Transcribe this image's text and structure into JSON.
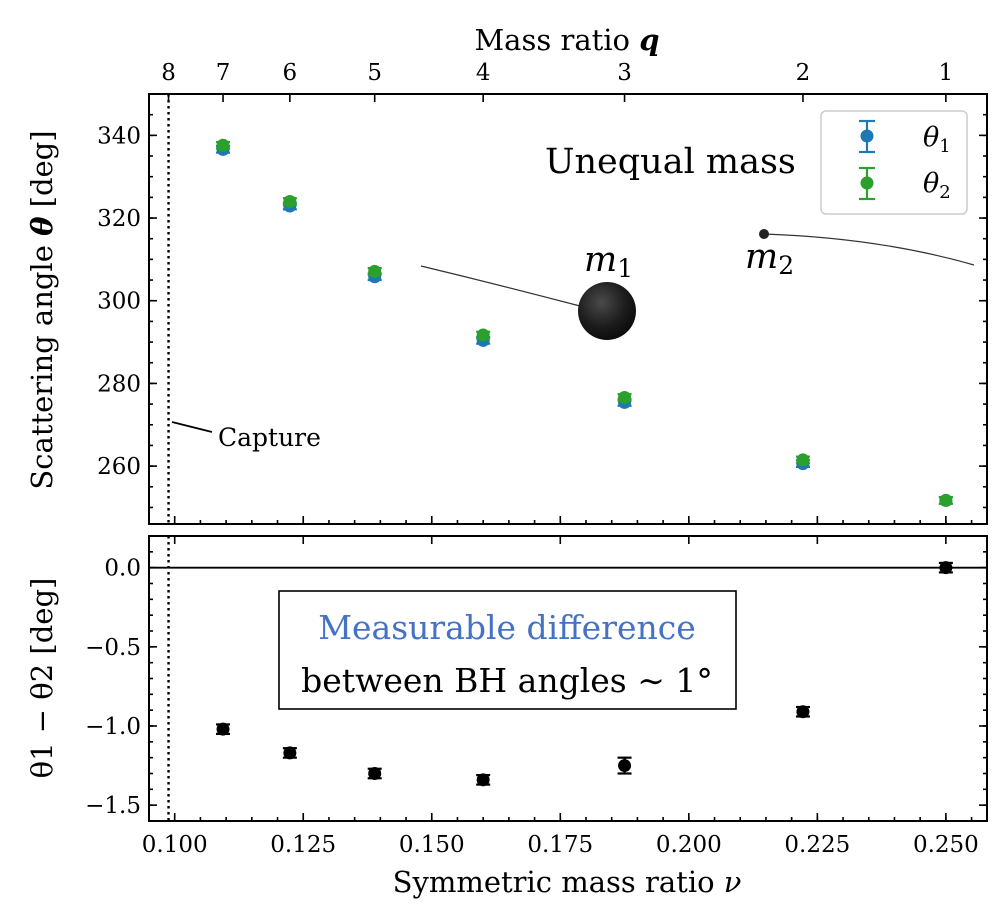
{
  "chart_data": [
    {
      "type": "scatter",
      "panel": "top",
      "title": "",
      "top_axis": {
        "label": "Mass ratio",
        "label_symbol": "q",
        "ticks": [
          {
            "label": "8",
            "nu": 0.0988
          },
          {
            "label": "7",
            "nu": 0.1094
          },
          {
            "label": "6",
            "nu": 0.1224
          },
          {
            "label": "5",
            "nu": 0.1389
          },
          {
            "label": "4",
            "nu": 0.16
          },
          {
            "label": "3",
            "nu": 0.1875
          },
          {
            "label": "2",
            "nu": 0.2222
          },
          {
            "label": "1",
            "nu": 0.25
          }
        ]
      },
      "xlabel": "Symmetric mass ratio",
      "xlabel_symbol": "ν",
      "ylabel": "Scattering angle",
      "ylabel_symbol": "θ",
      "ylabel_unit": "[deg]",
      "xlim": [
        0.095,
        0.258
      ],
      "ylim": [
        246,
        350
      ],
      "yticks": [
        260,
        280,
        300,
        320,
        340
      ],
      "x": [
        0.1094,
        0.1224,
        0.1389,
        0.16,
        0.1875,
        0.2222,
        0.25
      ],
      "series": [
        {
          "name": "θ1",
          "base": "θ",
          "sub": "1",
          "color": "#1f77b4",
          "values": [
            336.6,
            322.9,
            305.8,
            290.4,
            275.4,
            260.6,
            251.7
          ],
          "error": 0.6
        },
        {
          "name": "θ2",
          "base": "θ",
          "sub": "2",
          "color": "#2ca02c",
          "values": [
            337.6,
            324.0,
            307.1,
            291.7,
            276.6,
            261.5,
            251.7
          ],
          "error": 0.6
        }
      ],
      "capture_line": {
        "x": 0.0988,
        "label": "Capture"
      },
      "annotation_title": "Unequal mass",
      "bodies": [
        {
          "label_base": "m",
          "label_sub": "1"
        },
        {
          "label_base": "m",
          "label_sub": "2"
        }
      ],
      "legend_position": "top-right",
      "grid": false
    },
    {
      "type": "scatter",
      "panel": "bottom",
      "xlabel": "Symmetric mass ratio",
      "xlabel_symbol": "ν",
      "xticks": [
        0.1,
        0.125,
        0.15,
        0.175,
        0.2,
        0.225,
        0.25
      ],
      "xticklabels": [
        "0.100",
        "0.125",
        "0.150",
        "0.175",
        "0.200",
        "0.225",
        "0.250"
      ],
      "xlim": [
        0.095,
        0.258
      ],
      "ylabel": "θ1 − θ2 [deg]",
      "ylim": [
        -1.6,
        0.2
      ],
      "yticks": [
        0.0,
        -0.5,
        -1.0,
        -1.5
      ],
      "yticklabels": [
        "0.0",
        "−0.5",
        "−1.0",
        "−1.5"
      ],
      "x": [
        0.1094,
        0.1224,
        0.1389,
        0.16,
        0.1875,
        0.2222,
        0.25
      ],
      "series": [
        {
          "name": "θ1 − θ2",
          "color": "#000000",
          "values": [
            -1.02,
            -1.17,
            -1.3,
            -1.34,
            -1.25,
            -0.91,
            0.0
          ],
          "errors": [
            0.03,
            0.03,
            0.03,
            0.03,
            0.05,
            0.03,
            0.03
          ]
        }
      ],
      "hline": 0.0,
      "capture_line": {
        "x": 0.0988
      },
      "box": {
        "line1": "Measurable difference",
        "line1_color": "#4472c4",
        "line2": "between BH angles ∼ 1°"
      },
      "grid": false
    }
  ]
}
